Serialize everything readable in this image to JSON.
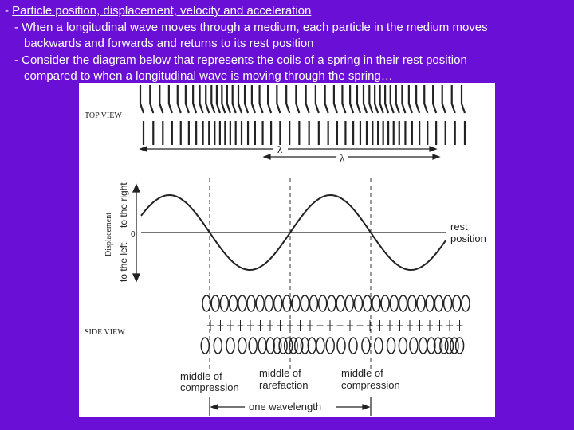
{
  "bullets": {
    "title_prefix": "- ",
    "title": "Particle position, displacement, velocity and acceleration",
    "point1_line1": "- When a longitudinal wave moves through a medium, each particle in the medium moves",
    "point1_line2": "backwards and forwards and returns to its rest position",
    "point2_line1": "- Consider the diagram below that represents the coils of a spring in their rest position",
    "point2_line2": "compared to when a longitudinal wave is moving through the spring…"
  },
  "figure": {
    "top_view_label": "TOP VIEW",
    "side_view_label": "SIDE VIEW",
    "lambda_symbol": "λ",
    "displacement_label": "Displacement",
    "to_right_label": "to the right",
    "to_left_label": "to the left",
    "zero_label": "0",
    "rest_label_line1": "rest",
    "rest_label_line2": "position",
    "compression_label1_line1": "middle of",
    "compression_label1_line2": "compression",
    "rarefaction_label_line1": "middle of",
    "rarefaction_label_line2": "rarefaction",
    "compression_label2_line1": "middle of",
    "compression_label2_line2": "compression",
    "wavelength_label": "one wavelength"
  },
  "colors": {
    "background": "#6a0fd6",
    "text": "#ffffff",
    "figure_ink": "#222222"
  }
}
